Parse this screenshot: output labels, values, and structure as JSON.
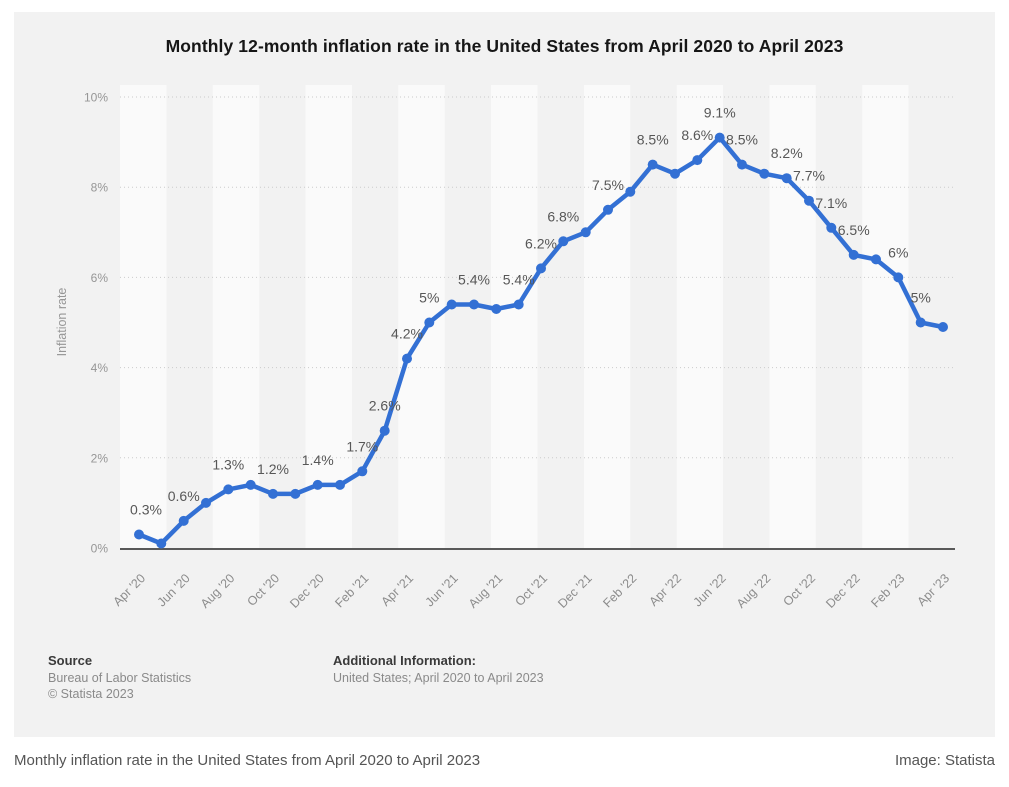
{
  "title": "Monthly 12-month inflation rate in the United States from April 2020 to April 2023",
  "footer": {
    "source_label": "Source",
    "source_lines": [
      "Bureau of Labor Statistics",
      "© Statista 2023"
    ],
    "additional_label": "Additional Information:",
    "additional_lines": [
      "United States; April 2020 to April 2023"
    ]
  },
  "caption": {
    "left": "Monthly inflation rate in the United States from April 2020 to April 2023",
    "right": "Image: Statista"
  },
  "colors": {
    "line": "#3370d4",
    "card_bg": "#f2f2f2",
    "band": "#fafafa",
    "grid": "#cbcbcb",
    "axis": "#595959",
    "tick_text": "#969696",
    "label_text": "#575757"
  },
  "chart_data": {
    "type": "line",
    "title": "Monthly 12-month inflation rate in the United States from April 2020 to April 2023",
    "ylabel": "Inflation rate",
    "xlabel": "",
    "ylim": [
      0,
      10
    ],
    "ytick_step": 2,
    "ytick_suffix": "%",
    "x_tick_every": 2,
    "grid": "horizontal-dotted",
    "legend": "none",
    "x": [
      "Apr '20",
      "May '20",
      "Jun '20",
      "Jul '20",
      "Aug '20",
      "Sep '20",
      "Oct '20",
      "Nov '20",
      "Dec '20",
      "Jan '21",
      "Feb '21",
      "Mar '21",
      "Apr '21",
      "May '21",
      "Jun '21",
      "Jul '21",
      "Aug '21",
      "Sep '21",
      "Oct '21",
      "Nov '21",
      "Dec '21",
      "Jan '22",
      "Feb '22",
      "Mar '22",
      "Apr '22",
      "May '22",
      "Jun '22",
      "Jul '22",
      "Aug '22",
      "Sep '22",
      "Oct '22",
      "Nov '22",
      "Dec '22",
      "Jan '23",
      "Feb '23",
      "Mar '23",
      "Apr '23"
    ],
    "values": [
      0.3,
      0.1,
      0.6,
      1.0,
      1.3,
      1.4,
      1.2,
      1.2,
      1.4,
      1.4,
      1.7,
      2.6,
      4.2,
      5.0,
      5.4,
      5.4,
      5.3,
      5.4,
      6.2,
      6.8,
      7.0,
      7.5,
      7.9,
      8.5,
      8.3,
      8.6,
      9.1,
      8.5,
      8.3,
      8.2,
      7.7,
      7.1,
      6.5,
      6.4,
      6.0,
      5.0,
      4.9
    ],
    "point_labels": [
      "0.3%",
      null,
      "0.6%",
      null,
      "1.3%",
      null,
      "1.2%",
      null,
      "1.4%",
      null,
      "1.7%",
      "2.6%",
      "4.2%",
      "5%",
      null,
      "5.4%",
      null,
      "5.4%",
      "6.2%",
      "6.8%",
      null,
      "7.5%",
      null,
      "8.5%",
      null,
      "8.6%",
      "9.1%",
      "8.5%",
      null,
      "8.2%",
      "7.7%",
      "7.1%",
      "6.5%",
      null,
      "6%",
      "5%",
      null
    ]
  }
}
